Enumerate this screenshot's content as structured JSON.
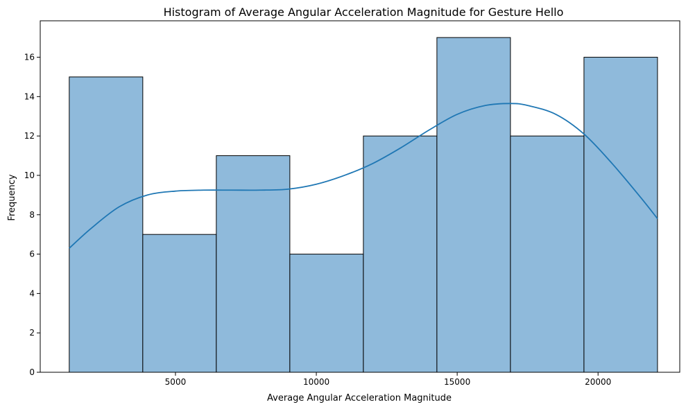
{
  "chart_data": {
    "type": "bar",
    "subtype": "histogram-with-kde",
    "title": "Histogram of Average Angular Acceleration Magnitude for Gesture Hello",
    "xlabel": "Average Angular Acceleration Magnitude",
    "ylabel": "Frequency",
    "xlim": [
      200,
      22900
    ],
    "ylim": [
      0,
      17.85
    ],
    "x_ticks": [
      5000,
      10000,
      15000,
      20000
    ],
    "y_ticks": [
      0,
      2,
      4,
      6,
      8,
      10,
      12,
      14,
      16
    ],
    "bin_edges": [
      1230,
      3840,
      6450,
      9060,
      11670,
      14280,
      16890,
      19500,
      22110
    ],
    "values": [
      15,
      7,
      11,
      6,
      12,
      17,
      12,
      16
    ],
    "kde": {
      "x": [
        1230,
        2000,
        3000,
        4000,
        5000,
        6000,
        7000,
        8000,
        9000,
        10000,
        11000,
        12000,
        13000,
        14000,
        15000,
        16000,
        16900,
        17500,
        18500,
        19500,
        20500,
        21500,
        22110
      ],
      "y": [
        6.3,
        7.3,
        8.4,
        9.0,
        9.2,
        9.25,
        9.25,
        9.25,
        9.3,
        9.55,
        10.0,
        10.6,
        11.4,
        12.3,
        13.1,
        13.55,
        13.65,
        13.55,
        13.1,
        12.1,
        10.6,
        8.9,
        7.8
      ]
    },
    "colors": {
      "bar_fill": "#8fbadb",
      "bar_edge": "#000000",
      "kde_line": "#1f77b4"
    },
    "grid": false,
    "legend": "none"
  }
}
